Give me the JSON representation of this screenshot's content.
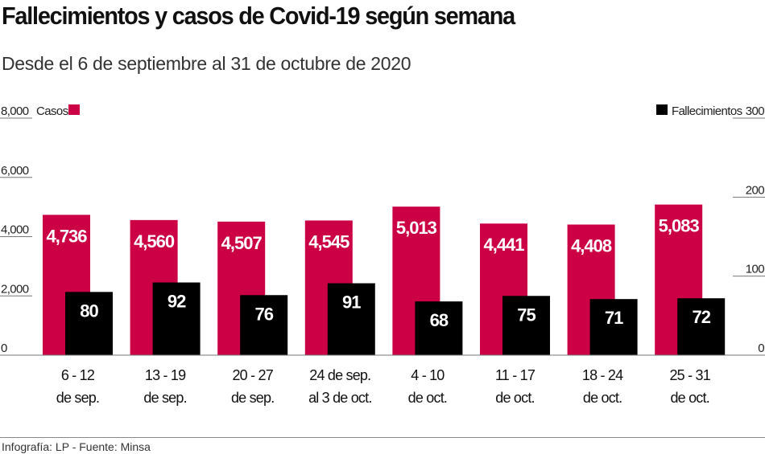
{
  "chart_data": {
    "type": "bar",
    "title": "Fallecimientos y casos de Covid-19 según semana",
    "subtitle": "Desde el 6 de septiembre al 31 de octubre de 2020",
    "categories": [
      [
        "6 - 12",
        "de sep."
      ],
      [
        "13 - 19",
        "de sep."
      ],
      [
        "20 - 27",
        "de sep."
      ],
      [
        "24 de sep.",
        "al 3 de oct."
      ],
      [
        "4 - 10",
        "de oct."
      ],
      [
        "11 - 17",
        "de oct."
      ],
      [
        "18 - 24",
        "de oct."
      ],
      [
        "25 - 31",
        "de oct."
      ]
    ],
    "series": [
      {
        "name": "Casos",
        "axis": "left",
        "color": "#cc0044",
        "values": [
          4736,
          4560,
          4507,
          4545,
          5013,
          4441,
          4408,
          5083
        ],
        "labels": [
          "4,736",
          "4,560",
          "4,507",
          "4,545",
          "5,013",
          "4,441",
          "4,408",
          "5,083"
        ]
      },
      {
        "name": "Fallecimientos",
        "axis": "right",
        "color": "#000000",
        "values": [
          80,
          92,
          76,
          91,
          68,
          75,
          71,
          72
        ],
        "labels": [
          "80",
          "92",
          "76",
          "91",
          "68",
          "75",
          "71",
          "72"
        ]
      }
    ],
    "left_axis": {
      "range": [
        0,
        8000
      ],
      "ticks": [
        0,
        2000,
        4000,
        6000,
        8000
      ],
      "tick_labels": [
        "0",
        "2,000",
        "4,000",
        "6,000",
        "8,000"
      ]
    },
    "right_axis": {
      "range": [
        0,
        300
      ],
      "ticks": [
        0,
        100,
        200,
        300
      ],
      "tick_labels": [
        "0",
        "100",
        "200",
        "300"
      ]
    },
    "legend_placement": "top"
  },
  "footer": "Infografía: LP - Fuente: Minsa"
}
